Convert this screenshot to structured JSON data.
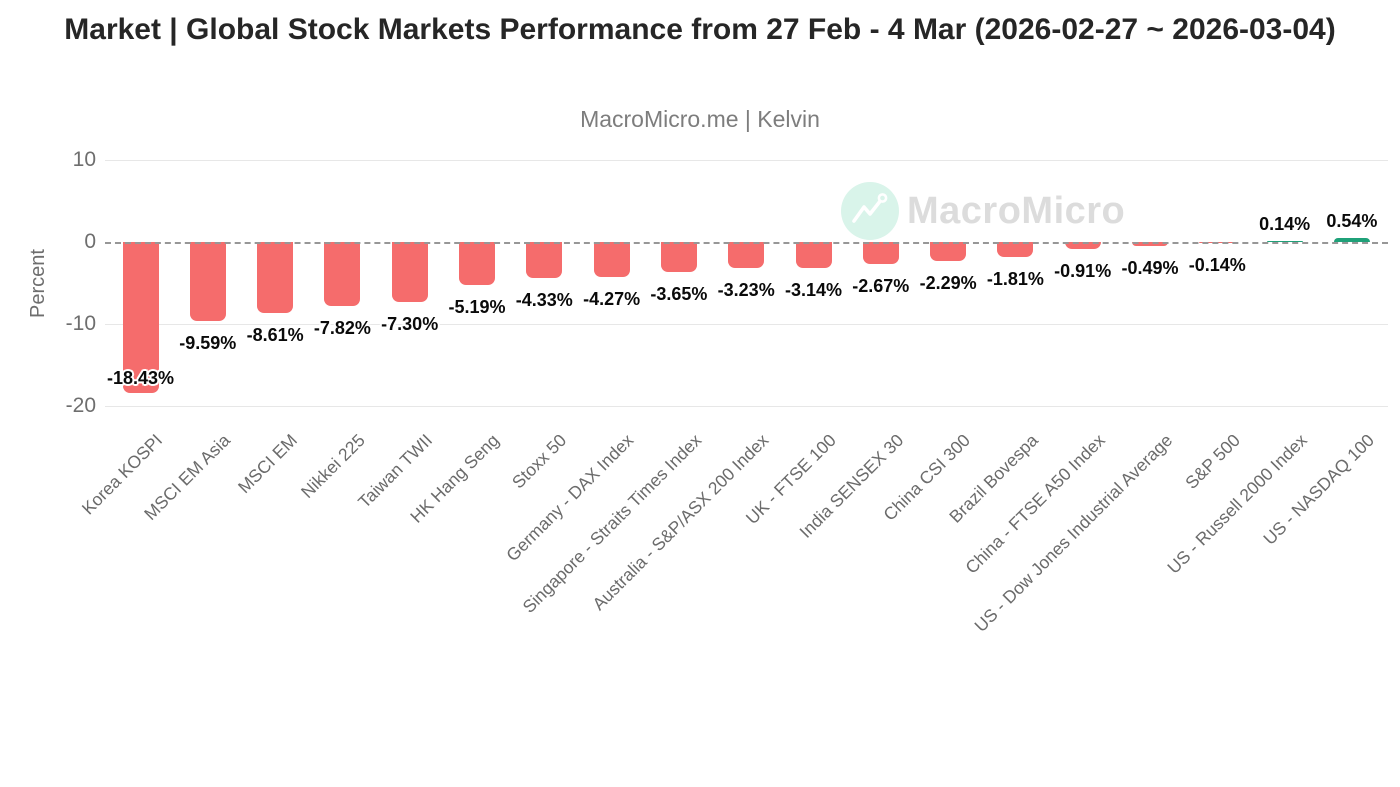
{
  "title": "Market | Global Stock Markets Performance from 27 Feb - 4 Mar (2026-02-27 ~ 2026-03-04)",
  "subtitle": "MacroMicro.me | Kelvin",
  "watermark": {
    "text": "MacroMicro",
    "icon": "line-chart-icon"
  },
  "chart_data": {
    "type": "bar",
    "title": "Market | Global Stock Markets Performance from 27 Feb - 4 Mar (2026-02-27 ~ 2026-03-04)",
    "xlabel": "",
    "ylabel": "Percent",
    "ylim": [
      -20,
      10
    ],
    "yticks": [
      10,
      0,
      -10,
      -20
    ],
    "grid": true,
    "zero_line_style": "dashed",
    "legend": "none",
    "categories": [
      "Korea KOSPI",
      "MSCI EM Asia",
      "MSCI EM",
      "Nikkei 225",
      "Taiwan TWII",
      "HK Hang Seng",
      "Stoxx 50",
      "Germany - DAX Index",
      "Singapore - Straits Times Index",
      "Australia - S&P/ASX 200 Index",
      "UK - FTSE 100",
      "India SENSEX 30",
      "China CSI 300",
      "Brazil Bovespa",
      "China - FTSE A50 Index",
      "US - Dow Jones Industrial Average",
      "S&P 500",
      "US - Russell 2000 Index",
      "US - NASDAQ 100"
    ],
    "values": [
      -18.43,
      -9.59,
      -8.61,
      -7.82,
      -7.3,
      -5.19,
      -4.33,
      -4.27,
      -3.65,
      -3.23,
      -3.14,
      -2.67,
      -2.29,
      -1.81,
      -0.91,
      -0.49,
      -0.14,
      0.14,
      0.54
    ],
    "value_labels": [
      "-18.43%",
      "-9.59%",
      "-8.61%",
      "-7.82%",
      "-7.30%",
      "-5.19%",
      "-4.33%",
      "-4.27%",
      "-3.65%",
      "-3.23%",
      "-3.14%",
      "-2.67%",
      "-2.29%",
      "-1.81%",
      "-0.91%",
      "-0.49%",
      "-0.14%",
      "0.14%",
      "0.54%"
    ],
    "colors": {
      "negative_bar": "#F56C6C",
      "positive_bar": "#1FA179",
      "gridline": "#e7e7e7",
      "zero_line": "#979797",
      "axis_text": "#6b6b6b",
      "watermark_circle": "#d9f4ea",
      "watermark_text": "#dcdcdc"
    }
  }
}
